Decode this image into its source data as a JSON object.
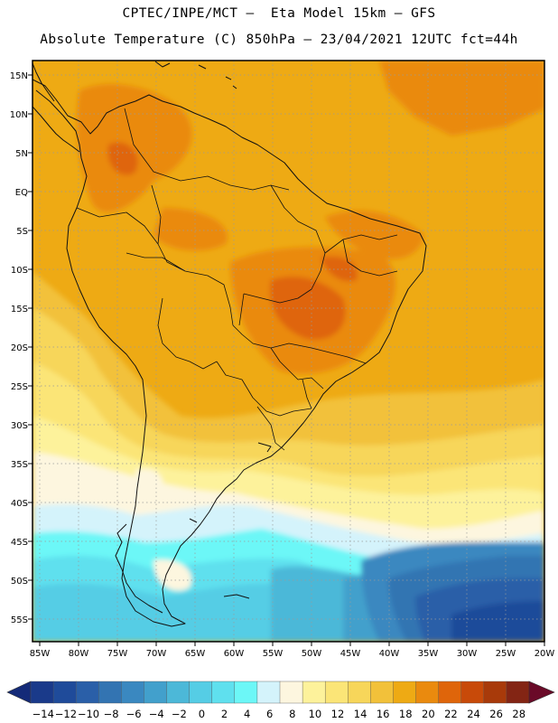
{
  "title_line1": "CPTEC/INPE/MCT –  Eta Model 15km – GFS",
  "title_line2": "Absolute Temperature (C) 850hPa – 23/04/2021 12UTC fct=44h",
  "lat_labels": [
    "15N",
    "10N",
    "5N",
    "EQ",
    "5S",
    "10S",
    "15S",
    "20S",
    "25S",
    "30S",
    "35S",
    "40S",
    "45S",
    "50S",
    "55S"
  ],
  "lon_labels": [
    "85W",
    "80W",
    "75W",
    "70W",
    "65W",
    "60W",
    "55W",
    "50W",
    "45W",
    "40W",
    "35W",
    "30W",
    "25W",
    "20W"
  ],
  "colorbar": {
    "labels": [
      "-14",
      "-12",
      "-10",
      "-8",
      "-6",
      "-4",
      "-2",
      "0",
      "2",
      "4",
      "6",
      "8",
      "10",
      "12",
      "14",
      "16",
      "18",
      "20",
      "22",
      "24",
      "26",
      "28"
    ],
    "colors": [
      "#1a3a8a",
      "#1f4b9a",
      "#2a5fa8",
      "#3374b2",
      "#3a88c0",
      "#42a0cc",
      "#4cb8d8",
      "#55cde5",
      "#5fe0ee",
      "#6cf7f7",
      "#d4f3fb",
      "#fdf6df",
      "#fdf29b",
      "#fbe577",
      "#f7d65a",
      "#f2c13a",
      "#eeaa14",
      "#ea8a0e",
      "#df650a",
      "#c84a09",
      "#a83a0a",
      "#832514"
    ],
    "low_arrow_color": "#142a78",
    "high_arrow_color": "#6a0a28"
  },
  "map_colors": {
    "ocean_n": "#eeaa14",
    "band_20_22": "#ea8a0e",
    "band_22_24": "#df650a",
    "band_16_18": "#f2c13a",
    "band_14_16": "#f7d65a",
    "band_12_14": "#fbe577",
    "band_10_12": "#fdf29b",
    "band_8_10": "#fdf6df",
    "band_6_8": "#d4f3fb",
    "band_4_6": "#6cf7f7",
    "band_2_4": "#5fe0ee",
    "band_0_2": "#55cde5",
    "band_m2_0": "#4cb8d8",
    "band_m4_m2": "#42a0cc",
    "band_m6_m4": "#3a88c0",
    "band_m8_m6": "#3374b2",
    "band_m10_m8": "#2a5fa8",
    "band_m12_m10": "#1f4b9a"
  }
}
